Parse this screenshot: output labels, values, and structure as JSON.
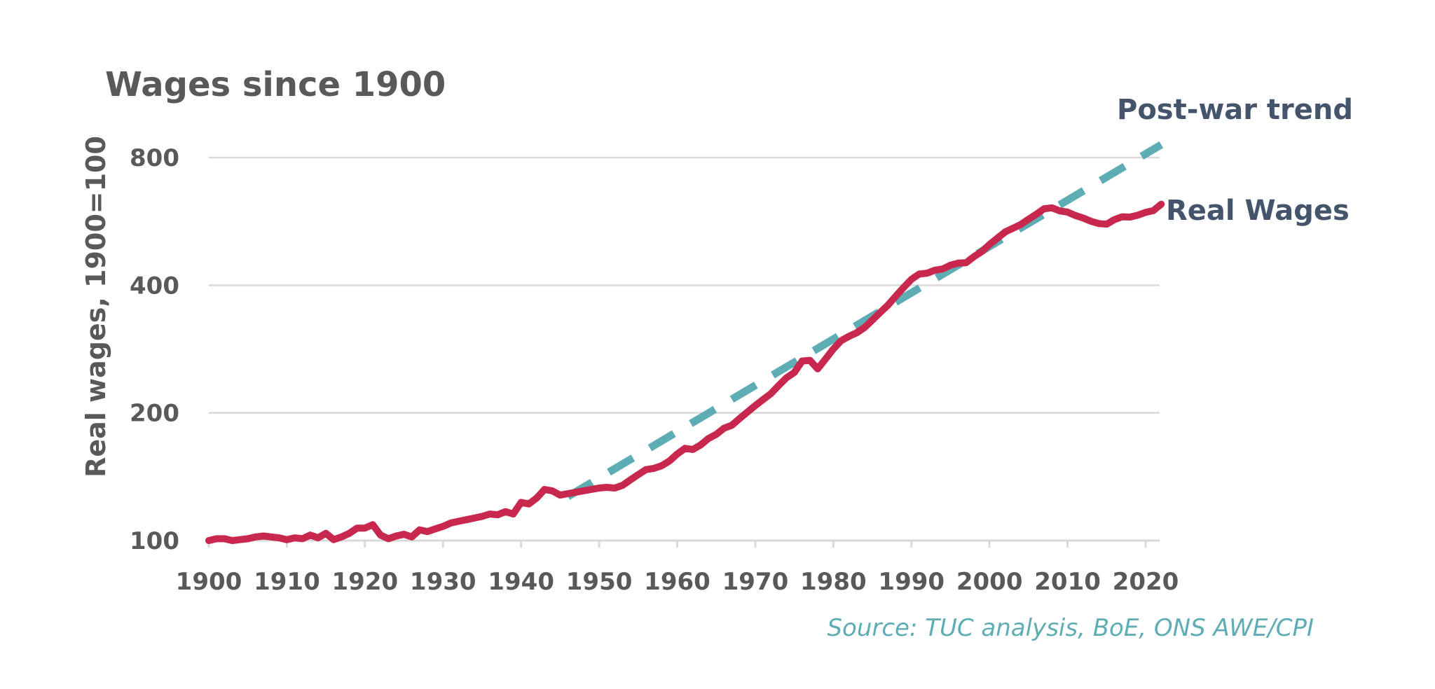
{
  "chart_data": {
    "type": "line",
    "title": "Wages since 1900",
    "ylabel": "Real wages, 1900=100",
    "xlabel": "",
    "source": "Source: TUC analysis, BoE, ONS AWE/CPI",
    "x_ticks": [
      1900,
      1910,
      1920,
      1930,
      1940,
      1950,
      1960,
      1970,
      1980,
      1990,
      2000,
      2010,
      2020
    ],
    "y_ticks": [
      100,
      200,
      400,
      800
    ],
    "y_scale": "log2",
    "xlim": [
      1900,
      2022
    ],
    "ylim": [
      100,
      800
    ],
    "grid": true,
    "series": [
      {
        "name": "Real Wages",
        "style": "solid",
        "color": "#c8284e",
        "x": [
          1900,
          1901,
          1902,
          1903,
          1904,
          1905,
          1906,
          1907,
          1908,
          1909,
          1910,
          1911,
          1912,
          1913,
          1914,
          1915,
          1916,
          1917,
          1918,
          1919,
          1920,
          1921,
          1922,
          1923,
          1924,
          1925,
          1926,
          1927,
          1928,
          1929,
          1930,
          1931,
          1932,
          1933,
          1934,
          1935,
          1936,
          1937,
          1938,
          1939,
          1940,
          1941,
          1942,
          1943,
          1944,
          1945,
          1946,
          1947,
          1948,
          1949,
          1950,
          1951,
          1952,
          1953,
          1954,
          1955,
          1956,
          1957,
          1958,
          1959,
          1960,
          1961,
          1962,
          1963,
          1964,
          1965,
          1966,
          1967,
          1968,
          1969,
          1970,
          1971,
          1972,
          1973,
          1974,
          1975,
          1976,
          1977,
          1978,
          1979,
          1980,
          1981,
          1982,
          1983,
          1984,
          1985,
          1986,
          1987,
          1988,
          1989,
          1990,
          1991,
          1992,
          1993,
          1994,
          1995,
          1996,
          1997,
          1998,
          1999,
          2000,
          2001,
          2002,
          2003,
          2004,
          2005,
          2006,
          2007,
          2008,
          2009,
          2010,
          2011,
          2012,
          2013,
          2014,
          2015,
          2016,
          2017,
          2018,
          2019,
          2020,
          2021,
          2022
        ],
        "values": [
          100,
          101,
          101,
          100,
          100.5,
          101,
          102,
          102.5,
          102,
          101.5,
          100.5,
          101.5,
          101,
          103,
          101.5,
          104,
          100.5,
          102,
          104,
          107,
          107,
          109,
          103,
          101,
          102.5,
          103.5,
          102,
          106,
          105,
          106.5,
          108,
          110,
          111,
          112,
          113,
          114,
          115.5,
          115,
          117,
          115.5,
          123,
          122,
          126,
          132,
          131,
          128,
          129,
          130,
          131,
          132,
          133,
          133.5,
          133,
          135,
          139,
          143,
          147,
          148,
          150,
          154,
          160,
          165,
          164,
          168,
          174,
          178,
          184,
          187,
          194,
          201,
          208,
          215,
          222,
          232,
          242,
          249,
          265,
          266,
          254,
          268,
          283,
          296,
          303,
          309,
          318,
          331,
          345,
          359,
          377,
          395,
          413,
          425,
          427,
          434,
          437,
          446,
          451,
          452,
          467,
          480,
          499,
          516,
          534,
          545,
          556,
          572,
          588,
          606,
          609,
          599,
          595,
          584,
          576,
          566,
          559,
          557,
          571,
          580,
          579,
          585,
          594,
          600,
          621
        ]
      },
      {
        "name": "Post-war trend",
        "style": "dashed",
        "color": "#5eadb5",
        "x": [
          1946,
          2022
        ],
        "values": [
          127,
          858
        ]
      }
    ]
  }
}
